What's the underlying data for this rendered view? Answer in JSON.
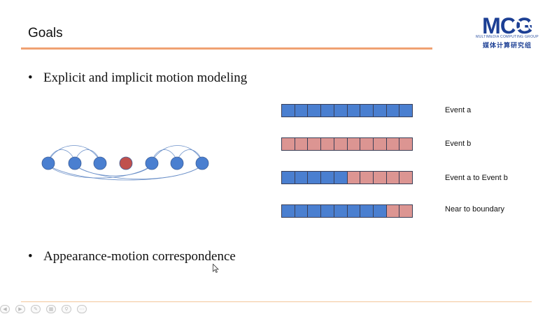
{
  "slide": {
    "title": "Goals",
    "accent_color": "#f0a172"
  },
  "logo": {
    "text": "MCG",
    "subtitle": "MULTIMEDIA COMPUTING GROUP",
    "chinese": "媒体计算研究组",
    "color": "#1c3f94"
  },
  "bullets": [
    {
      "marker": "•",
      "text": "Explicit and implicit motion modeling"
    },
    {
      "marker": "•",
      "text": "Appearance-motion correspondence"
    }
  ],
  "graph": {
    "nodes": [
      "blue",
      "blue",
      "blue",
      "red",
      "blue",
      "blue",
      "blue"
    ],
    "colors": {
      "blue": "#4a7fd0",
      "red": "#c0504d"
    }
  },
  "event_bars": [
    {
      "label": "Event a",
      "cells": [
        "a",
        "a",
        "a",
        "a",
        "a",
        "a",
        "a",
        "a",
        "a",
        "a"
      ]
    },
    {
      "label": "Event b",
      "cells": [
        "b",
        "b",
        "b",
        "b",
        "b",
        "b",
        "b",
        "b",
        "b",
        "b"
      ]
    },
    {
      "label": "Event a to Event b",
      "cells": [
        "a",
        "a",
        "a",
        "a",
        "a",
        "b",
        "b",
        "b",
        "b",
        "b"
      ]
    },
    {
      "label": "Near to boundary",
      "cells": [
        "a",
        "a",
        "a",
        "a",
        "a",
        "a",
        "a",
        "a",
        "b",
        "b"
      ]
    }
  ],
  "event_colors": {
    "a": "#4a7fd0",
    "b": "#dc9592"
  },
  "toolbar": {
    "buttons": [
      {
        "name": "prev-slide-icon",
        "glyph": "◀"
      },
      {
        "name": "next-slide-icon",
        "glyph": "▶"
      },
      {
        "name": "pen-icon",
        "glyph": "✎"
      },
      {
        "name": "slides-grid-icon",
        "glyph": "▦"
      },
      {
        "name": "zoom-icon",
        "glyph": "⚲"
      },
      {
        "name": "more-options-icon",
        "glyph": "⋯"
      }
    ]
  }
}
